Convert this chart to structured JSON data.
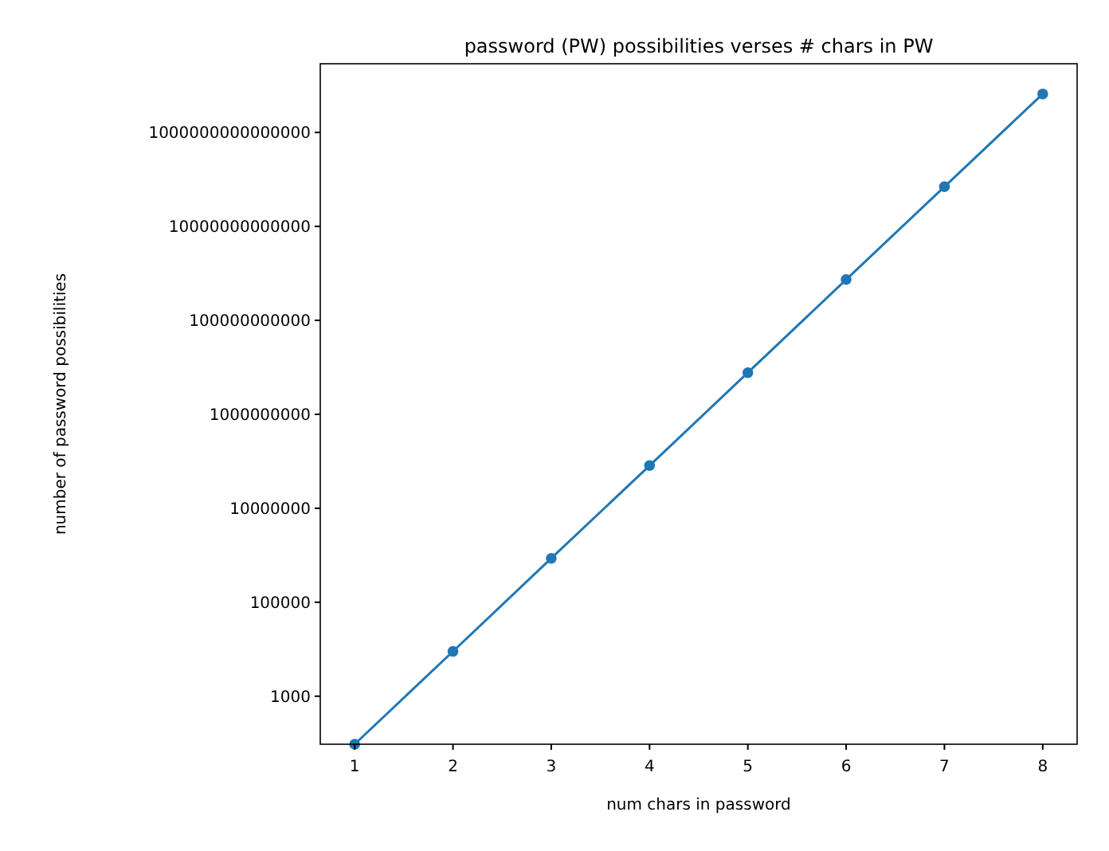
{
  "chart_data": {
    "type": "line",
    "title": "password (PW) possibilities verses # chars in PW",
    "xlabel": "num chars in password",
    "ylabel": "number of password possibilities",
    "x": [
      1,
      2,
      3,
      4,
      5,
      6,
      7,
      8
    ],
    "series": [
      {
        "color": "#1f77b4",
        "values": [
          95,
          9000,
          860000,
          81000000,
          7700000000,
          740000000000,
          70000000000000,
          6600000000000000
        ]
      }
    ],
    "log": "y",
    "marker": "circle",
    "line_style": "solid",
    "grid": false,
    "xlim": [
      0.65,
      8.35
    ],
    "xticks": [
      1,
      2,
      3,
      4,
      5,
      6,
      7,
      8
    ],
    "ylim": [
      95,
      29000000000000000
    ],
    "yticks": [
      1000,
      100000,
      10000000,
      1000000000,
      100000000000,
      10000000000000,
      1000000000000000
    ]
  }
}
